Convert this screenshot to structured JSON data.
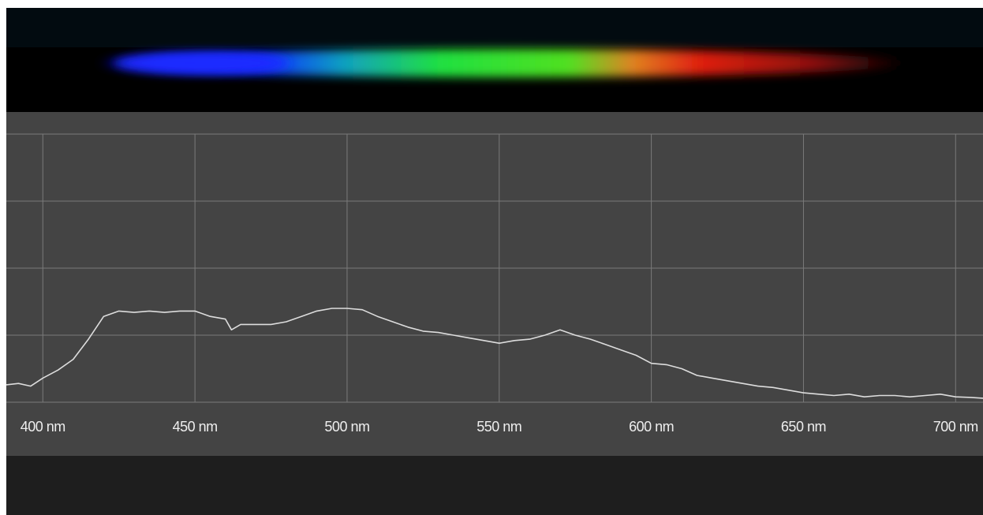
{
  "chart_data": {
    "type": "line",
    "x": [
      388,
      392,
      396,
      400,
      405,
      410,
      415,
      420,
      425,
      430,
      435,
      440,
      445,
      450,
      455,
      460,
      462,
      465,
      470,
      475,
      480,
      485,
      490,
      495,
      500,
      505,
      510,
      515,
      520,
      525,
      530,
      535,
      540,
      545,
      550,
      555,
      560,
      565,
      570,
      575,
      580,
      585,
      590,
      595,
      600,
      605,
      610,
      615,
      620,
      625,
      630,
      635,
      640,
      645,
      650,
      655,
      660,
      665,
      670,
      675,
      680,
      685,
      690,
      695,
      700,
      705,
      709
    ],
    "values": [
      0.065,
      0.07,
      0.06,
      0.09,
      0.12,
      0.16,
      0.235,
      0.32,
      0.34,
      0.335,
      0.34,
      0.335,
      0.34,
      0.34,
      0.32,
      0.31,
      0.27,
      0.29,
      0.29,
      0.29,
      0.3,
      0.32,
      0.34,
      0.35,
      0.35,
      0.345,
      0.32,
      0.3,
      0.28,
      0.265,
      0.26,
      0.25,
      0.24,
      0.23,
      0.22,
      0.23,
      0.235,
      0.25,
      0.27,
      0.25,
      0.235,
      0.215,
      0.195,
      0.175,
      0.145,
      0.14,
      0.125,
      0.1,
      0.09,
      0.08,
      0.07,
      0.06,
      0.055,
      0.045,
      0.035,
      0.03,
      0.025,
      0.03,
      0.02,
      0.025,
      0.025,
      0.02,
      0.025,
      0.03,
      0.02,
      0.018,
      0.015
    ],
    "color": "#dddddd",
    "xlim": [
      388,
      709
    ],
    "xticks": [
      {
        "value": 400,
        "label": "400 nm"
      },
      {
        "value": 450,
        "label": "450 nm"
      },
      {
        "value": 500,
        "label": "500 nm"
      },
      {
        "value": 550,
        "label": "550 nm"
      },
      {
        "value": 600,
        "label": "600 nm"
      },
      {
        "value": 650,
        "label": "650 nm"
      },
      {
        "value": 700,
        "label": "700 nm"
      }
    ],
    "ylim": [
      0,
      1
    ],
    "yticks": [
      0,
      0.25,
      0.5,
      0.75,
      1
    ],
    "grid": true
  }
}
